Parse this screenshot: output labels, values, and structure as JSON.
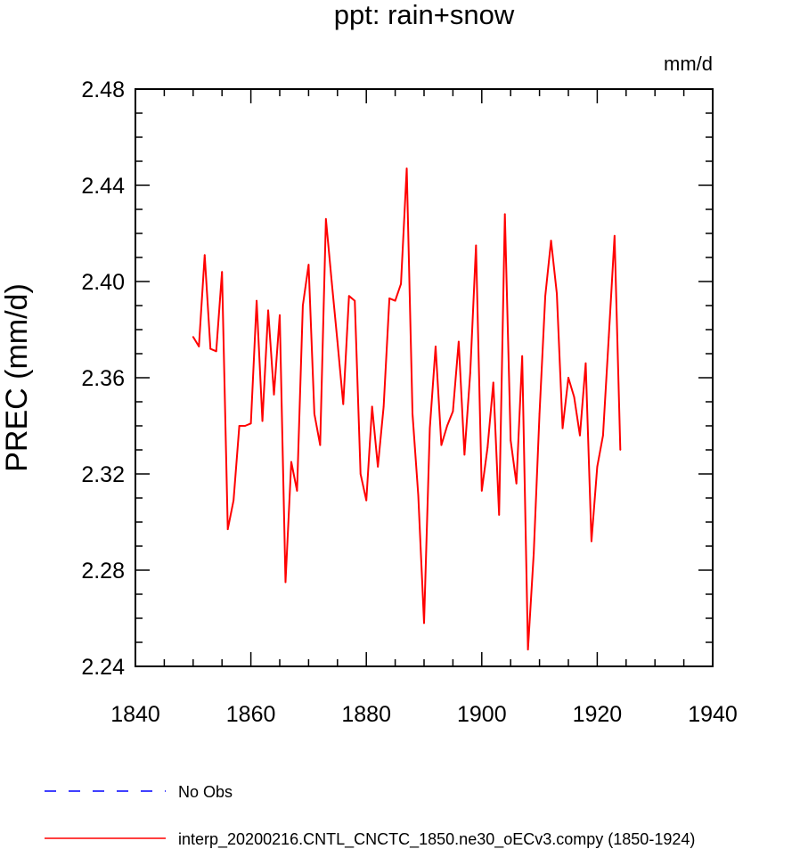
{
  "chart_data": {
    "type": "line",
    "title": "ppt: rain+snow",
    "units": "mm/d",
    "xlabel": "",
    "ylabel": "PREC  (mm/d)",
    "xlim": [
      1840,
      1940
    ],
    "ylim": [
      2.24,
      2.48
    ],
    "x_ticks": [
      "1840",
      "1860",
      "1880",
      "1900",
      "1920",
      "1940"
    ],
    "y_ticks": [
      "2.24",
      "2.28",
      "2.32",
      "2.36",
      "2.40",
      "2.44",
      "2.48"
    ],
    "grid": false,
    "legend_position": "bottom",
    "series": [
      {
        "name": "interp_20200216.CNTL_CNCTC_1850.ne30_oECv3.compy (1850-1924)",
        "color": "#ff0000",
        "x": [
          1850,
          1851,
          1852,
          1853,
          1854,
          1855,
          1856,
          1857,
          1858,
          1859,
          1860,
          1861,
          1862,
          1863,
          1864,
          1865,
          1866,
          1867,
          1868,
          1869,
          1870,
          1871,
          1872,
          1873,
          1874,
          1875,
          1876,
          1877,
          1878,
          1879,
          1880,
          1881,
          1882,
          1883,
          1884,
          1885,
          1886,
          1887,
          1888,
          1889,
          1890,
          1891,
          1892,
          1893,
          1894,
          1895,
          1896,
          1897,
          1898,
          1899,
          1900,
          1901,
          1902,
          1903,
          1904,
          1905,
          1906,
          1907,
          1908,
          1909,
          1910,
          1911,
          1912,
          1913,
          1914,
          1915,
          1916,
          1917,
          1918,
          1919,
          1920,
          1921,
          1922,
          1923,
          1924
        ],
        "values": [
          2.377,
          2.373,
          2.411,
          2.372,
          2.371,
          2.404,
          2.297,
          2.309,
          2.34,
          2.34,
          2.341,
          2.392,
          2.342,
          2.388,
          2.353,
          2.386,
          2.275,
          2.325,
          2.313,
          2.39,
          2.407,
          2.345,
          2.332,
          2.426,
          2.4,
          2.375,
          2.349,
          2.394,
          2.392,
          2.32,
          2.309,
          2.348,
          2.323,
          2.348,
          2.393,
          2.392,
          2.399,
          2.447,
          2.345,
          2.311,
          2.258,
          2.339,
          2.373,
          2.332,
          2.34,
          2.346,
          2.375,
          2.328,
          2.362,
          2.415,
          2.313,
          2.331,
          2.358,
          2.303,
          2.428,
          2.334,
          2.316,
          2.369,
          2.247,
          2.287,
          2.345,
          2.394,
          2.417,
          2.395,
          2.339,
          2.36,
          2.352,
          2.336,
          2.366,
          2.292,
          2.323,
          2.336,
          2.377,
          2.419,
          2.33
        ]
      }
    ],
    "legend": [
      {
        "label": "No Obs",
        "color": "#0000ff",
        "style": "dashed"
      },
      {
        "label": "interp_20200216.CNTL_CNCTC_1850.ne30_oECv3.compy (1850-1924)",
        "color": "#ff0000",
        "style": "solid"
      }
    ]
  }
}
